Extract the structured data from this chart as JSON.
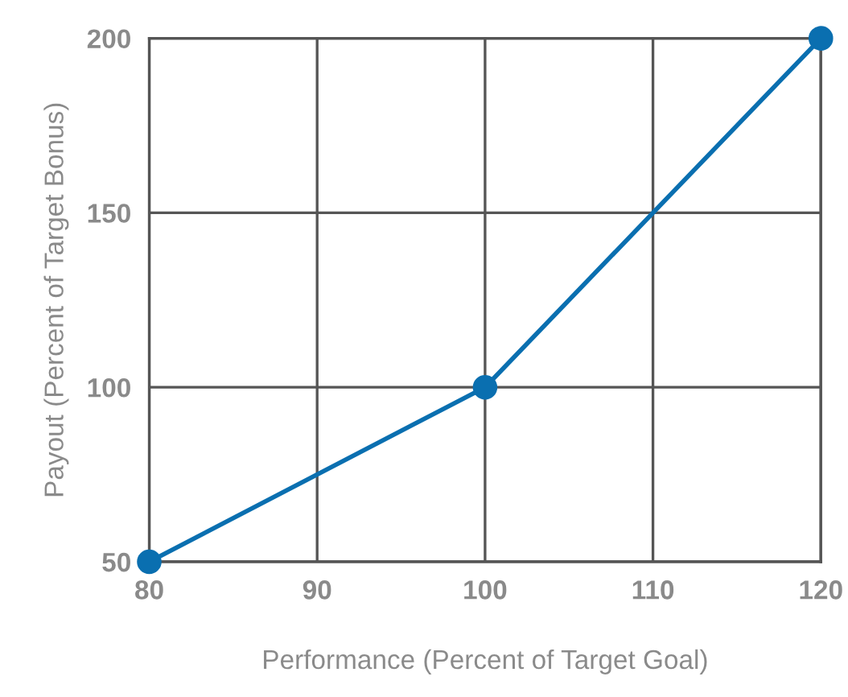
{
  "chart_data": {
    "type": "line",
    "xlabel": "Performance (Percent of Target Goal)",
    "ylabel": "Payout (Percent of Target Bonus)",
    "x": [
      80,
      100,
      120
    ],
    "series": [
      {
        "color": "#0a6fb0",
        "values": [
          50,
          100,
          200
        ]
      }
    ],
    "xlim": [
      80,
      120
    ],
    "ylim": [
      50,
      200
    ],
    "xticks": [
      80,
      90,
      100,
      110,
      120
    ],
    "yticks": [
      50,
      100,
      150,
      200
    ],
    "grid": true,
    "marker": "circle",
    "line_style": "solid"
  }
}
